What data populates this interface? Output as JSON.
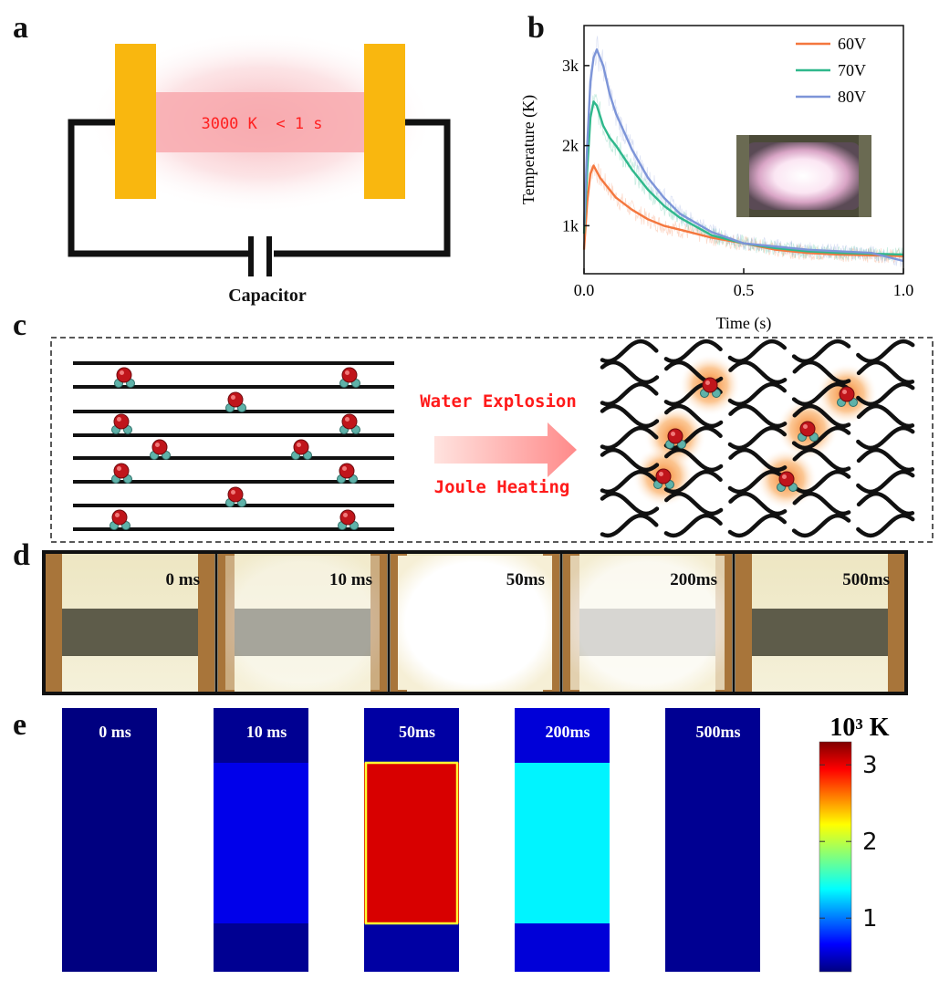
{
  "panels": {
    "a": "a",
    "b": "b",
    "c": "c",
    "d": "d",
    "e": "e"
  },
  "panel_a": {
    "circuit_text": "3000 K  < 1 s",
    "capacitor_label": "Capacitor",
    "electrode_color": "#F9B70F",
    "hot_zone_color": "#F8A9AE",
    "text_color": "#FF2020"
  },
  "panel_c": {
    "arrow_top_label": "Water Explosion",
    "arrow_bottom_label": "Joule Heating",
    "label_color": "#FF1A1A"
  },
  "panel_d": {
    "frames": [
      "0 ms",
      "10 ms",
      "50ms",
      "200ms",
      "500ms"
    ]
  },
  "panel_e": {
    "frames": [
      "0 ms",
      "10 ms",
      "50ms",
      "200ms",
      "500ms"
    ],
    "colorbar_title": "10³ K",
    "colorbar_ticks": [
      "1",
      "2",
      "3"
    ],
    "colorbar_tick_values": [
      1,
      2,
      3
    ],
    "colorbar_range": [
      0.3,
      3.3
    ],
    "frame_center_temps_kK": [
      0.3,
      0.6,
      3.05,
      1.35,
      0.35
    ],
    "frame_edge_temps_kK": [
      0.3,
      0.35,
      0.4,
      0.55,
      0.35
    ]
  },
  "chart_data": {
    "type": "line",
    "title": "",
    "xlabel": "Time (s)",
    "ylabel": "Temperature (K)",
    "xlim": [
      0,
      1.0
    ],
    "ylim": [
      400,
      3500
    ],
    "xticks": [
      0,
      0.5,
      1.0
    ],
    "xtick_labels": [
      "0.0",
      "0.5",
      "1.0"
    ],
    "yticks": [
      1000,
      2000,
      3000
    ],
    "ytick_labels": [
      "1k",
      "2k",
      "3k"
    ],
    "legend_position": "top-right",
    "series": [
      {
        "name": "60V",
        "color": "#F4773E",
        "x": [
          0,
          0.01,
          0.02,
          0.03,
          0.05,
          0.08,
          0.1,
          0.15,
          0.2,
          0.25,
          0.3,
          0.4,
          0.5,
          0.6,
          0.7,
          0.8,
          0.9,
          1.0
        ],
        "y": [
          700,
          1300,
          1650,
          1750,
          1600,
          1450,
          1350,
          1200,
          1080,
          1000,
          950,
          850,
          780,
          700,
          660,
          640,
          630,
          620
        ]
      },
      {
        "name": "70V",
        "color": "#2FB88C",
        "x": [
          0,
          0.01,
          0.02,
          0.03,
          0.04,
          0.06,
          0.08,
          0.1,
          0.15,
          0.2,
          0.25,
          0.3,
          0.4,
          0.5,
          0.6,
          0.7,
          0.8,
          0.9,
          1.0
        ],
        "y": [
          900,
          1700,
          2350,
          2550,
          2500,
          2250,
          2100,
          2000,
          1700,
          1450,
          1250,
          1100,
          880,
          780,
          720,
          680,
          660,
          650,
          640
        ]
      },
      {
        "name": "80V",
        "color": "#7D95D8",
        "x": [
          0,
          0.01,
          0.02,
          0.03,
          0.04,
          0.06,
          0.08,
          0.1,
          0.15,
          0.2,
          0.25,
          0.3,
          0.4,
          0.5,
          0.6,
          0.7,
          0.8,
          0.9,
          1.0
        ],
        "y": [
          1000,
          2000,
          2800,
          3100,
          3200,
          3000,
          2650,
          2400,
          1950,
          1600,
          1350,
          1150,
          920,
          780,
          740,
          700,
          680,
          660,
          560
        ]
      }
    ]
  }
}
